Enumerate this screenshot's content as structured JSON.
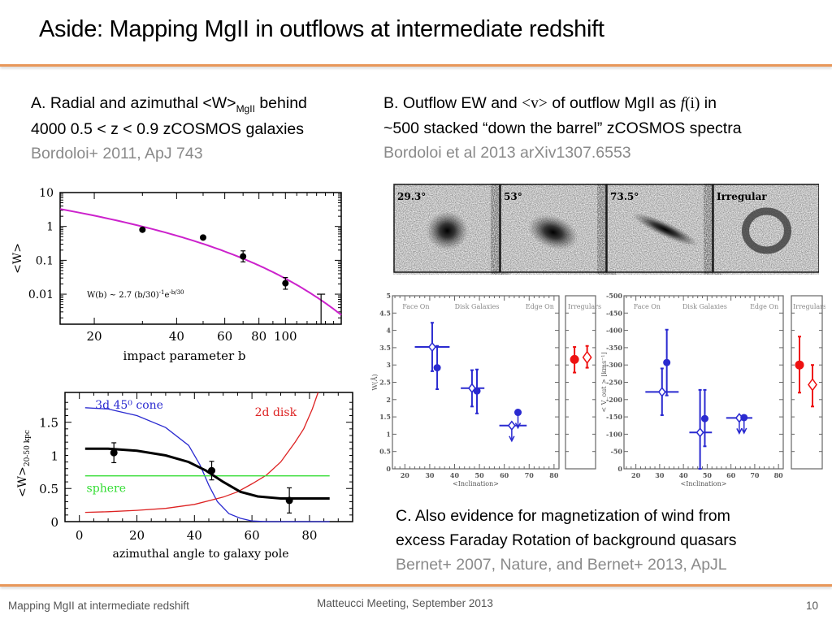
{
  "slide": {
    "title": "Aside: Mapping MgII in outflows at intermediate redshift",
    "footer_left": "Mapping MgII at intermediate redshift",
    "footer_center": "Matteucci Meeting, September  2013",
    "page_number": "10",
    "accent_color": "#e8975a"
  },
  "section_a": {
    "line1_pre": "A. Radial and azimuthal <W>",
    "line1_sub": "MgII",
    "line1_post": " behind",
    "line2": "4000 0.5 < z < 0.9 zCOSMOS galaxies",
    "ref": "Bordoloi+ 2011, ApJ 743"
  },
  "section_b": {
    "line1_pre": "B. Outflow EW and ",
    "line1_v": "<v>",
    "line1_mid": " of outflow MgII as ",
    "line1_f": "f",
    "line1_i": "(i)",
    "line1_post": " in",
    "line2": "~500 stacked  “down the barrel” zCOSMOS spectra",
    "ref": "Bordoloi et al 2013 arXiv1307.6553"
  },
  "section_c": {
    "line1": "C. Also evidence for magnetization of wind from",
    "line2": "excess Faraday Rotation of background quasars",
    "ref": "Bernet+ 2007, Nature, and Bernet+ 2013, ApJL"
  },
  "galaxy_images": [
    {
      "label": "29.3°",
      "shape": "face-on"
    },
    {
      "label": "53°",
      "shape": "inclined"
    },
    {
      "label": "73.5°",
      "shape": "edge-on"
    },
    {
      "label": "Irregular",
      "shape": "irregular"
    }
  ],
  "chart_data": [
    {
      "type": "scatter",
      "title": "",
      "xlabel": "impact parameter b",
      "ylabel": "<W>",
      "xscale": "log",
      "yscale": "log",
      "xlim": [
        15,
        160
      ],
      "ylim": [
        0.0013,
        10
      ],
      "xticks": [
        20,
        40,
        60,
        80,
        100
      ],
      "yticks": [
        10,
        1,
        0.1,
        0.01
      ],
      "ytick_labels": [
        "10",
        "1",
        "0.1",
        "0.01"
      ],
      "annotation": "W(b) ~ 2.7 (b/30)",
      "annotation_exp1": "-1",
      "annotation_mid": "e",
      "annotation_exp2": "-b/30",
      "fit": {
        "name": "W(b) = 2.7 (b/30)^-1 e^(-b/30)",
        "color": "#cc22cc"
      },
      "points": [
        {
          "x": 30,
          "y": 0.8
        },
        {
          "x": 50,
          "y": 0.47
        },
        {
          "x": 70,
          "y": 0.13,
          "yerr_lo": 0.09,
          "yerr_hi": 0.19
        },
        {
          "x": 100,
          "y": 0.021,
          "yerr_lo": 0.014,
          "yerr_hi": 0.031
        }
      ],
      "upper_limits": [
        {
          "x": 135,
          "y": 0.01
        }
      ]
    },
    {
      "type": "line",
      "title": "",
      "xlabel": "azimuthal angle to galaxy pole",
      "ylabel": "<W>",
      "ylabel_sub": "20-50 kpc",
      "xlim": [
        -5,
        95
      ],
      "ylim": [
        0,
        1.95
      ],
      "xticks": [
        0,
        20,
        40,
        60,
        80
      ],
      "yticks": [
        0,
        0.5,
        1,
        1.5
      ],
      "ytick_labels": [
        "0",
        "0.5",
        "1",
        "1.5"
      ],
      "series": [
        {
          "name": "3d 45⁰ cone",
          "color": "#2a2ad0",
          "x": [
            2,
            10,
            20,
            30,
            38,
            42,
            45,
            48,
            52,
            56,
            60,
            65,
            75,
            87
          ],
          "y": [
            1.72,
            1.7,
            1.6,
            1.42,
            1.15,
            0.85,
            0.55,
            0.3,
            0.12,
            0.05,
            0.01,
            0.0,
            0.0,
            0.0
          ]
        },
        {
          "name": "2d disk",
          "color": "#dd2222",
          "x": [
            2,
            10,
            20,
            30,
            40,
            50,
            55,
            60,
            65,
            70,
            75,
            78,
            81,
            83
          ],
          "y": [
            0.14,
            0.15,
            0.17,
            0.2,
            0.26,
            0.37,
            0.45,
            0.57,
            0.7,
            0.9,
            1.2,
            1.4,
            1.7,
            1.95
          ]
        },
        {
          "name": "sphere",
          "color": "#33dd33",
          "x": [
            2,
            87
          ],
          "y": [
            0.69,
            0.69
          ]
        },
        {
          "name": "model",
          "color": "#000000",
          "x": [
            2,
            10,
            20,
            30,
            38,
            44,
            50,
            56,
            62,
            70,
            80,
            87
          ],
          "y": [
            1.1,
            1.1,
            1.07,
            1.0,
            0.9,
            0.77,
            0.6,
            0.45,
            0.38,
            0.35,
            0.35,
            0.35
          ]
        }
      ],
      "points": [
        {
          "x": 12,
          "y": 1.04,
          "yerr_lo": 0.89,
          "yerr_hi": 1.19
        },
        {
          "x": 46,
          "y": 0.77,
          "yerr_lo": 0.63,
          "yerr_hi": 0.91
        },
        {
          "x": 73,
          "y": 0.32,
          "yerr_lo": 0.13,
          "yerr_hi": 0.51
        }
      ]
    },
    {
      "type": "scatter",
      "title": "",
      "xlabel": "<Inclination>",
      "ylabel": "W(Å)",
      "xlim": [
        15,
        82
      ],
      "ylim": [
        0,
        5
      ],
      "xticks": [
        20,
        30,
        40,
        50,
        60,
        70,
        80
      ],
      "yticks": [
        0,
        0.5,
        1,
        1.5,
        2,
        2.5,
        3,
        3.5,
        4,
        4.5,
        5
      ],
      "panel_labels": [
        "Face On",
        "Disk Galaxies",
        "Edge On",
        "Irregulars"
      ],
      "series": [
        {
          "name": "open diamonds",
          "color": "#2a2ad0",
          "points": [
            {
              "x": 31,
              "y": 3.52,
              "xerr": [
                24,
                38
              ],
              "yerr": [
                2.82,
                4.22
              ]
            },
            {
              "x": 47,
              "y": 2.33,
              "xerr": [
                42.5,
                52
              ],
              "yerr": [
                1.8,
                2.85
              ]
            },
            {
              "x": 63,
              "y": 1.25,
              "xerr": [
                58,
                69
              ],
              "upper_limit": true
            }
          ]
        },
        {
          "name": "filled circles",
          "color": "#2a2ad0",
          "points": [
            {
              "x": 33,
              "y": 2.92,
              "yerr": [
                2.3,
                3.55
              ]
            },
            {
              "x": 49,
              "y": 2.25,
              "yerr": [
                1.6,
                2.87
              ]
            },
            {
              "x": 65.5,
              "y": 1.63,
              "upper_limit": true
            }
          ]
        },
        {
          "name": "irregulars",
          "color": "#ee1111",
          "points": [
            {
              "kind": "filled",
              "y": 3.16,
              "yerr": [
                2.78,
                3.52
              ]
            },
            {
              "kind": "open",
              "y": 3.22,
              "yerr": [
                2.92,
                3.55
              ]
            }
          ]
        }
      ]
    },
    {
      "type": "scatter",
      "title": "",
      "xlabel": "<Inclination>",
      "ylabel": "< V_out > [kms⁻¹]",
      "xlim": [
        15,
        82
      ],
      "ylim": [
        0,
        -500
      ],
      "xticks": [
        20,
        30,
        40,
        50,
        60,
        70,
        80
      ],
      "yticks": [
        0,
        -50,
        -100,
        -150,
        -200,
        -250,
        -300,
        -350,
        -400,
        -450,
        -500
      ],
      "panel_labels": [
        "Face On",
        "Disk Galaxies",
        "Edge On",
        "Irregulars"
      ],
      "series": [
        {
          "name": "open diamonds",
          "color": "#2a2ad0",
          "points": [
            {
              "x": 31,
              "y": -222,
              "xerr": [
                24,
                38
              ],
              "yerr": [
                -155,
                -290
              ]
            },
            {
              "x": 47,
              "y": -105,
              "xerr": [
                42.5,
                52
              ],
              "yerr": [
                0,
                -228
              ]
            },
            {
              "x": 63.5,
              "y": -147,
              "xerr": [
                58,
                69
              ],
              "upper_limit": true
            }
          ]
        },
        {
          "name": "filled circles",
          "color": "#2a2ad0",
          "points": [
            {
              "x": 33,
              "y": -307,
              "yerr": [
                -212,
                -402
              ]
            },
            {
              "x": 49,
              "y": -145,
              "yerr": [
                -65,
                -228
              ]
            },
            {
              "x": 65.5,
              "y": -148,
              "upper_limit": true
            }
          ]
        },
        {
          "name": "irregulars",
          "color": "#ee1111",
          "points": [
            {
              "kind": "filled",
              "y": -300,
              "yerr": [
                -220,
                -382
              ]
            },
            {
              "kind": "open",
              "y": -243,
              "yerr": [
                -180,
                -300
              ]
            }
          ]
        }
      ]
    }
  ]
}
